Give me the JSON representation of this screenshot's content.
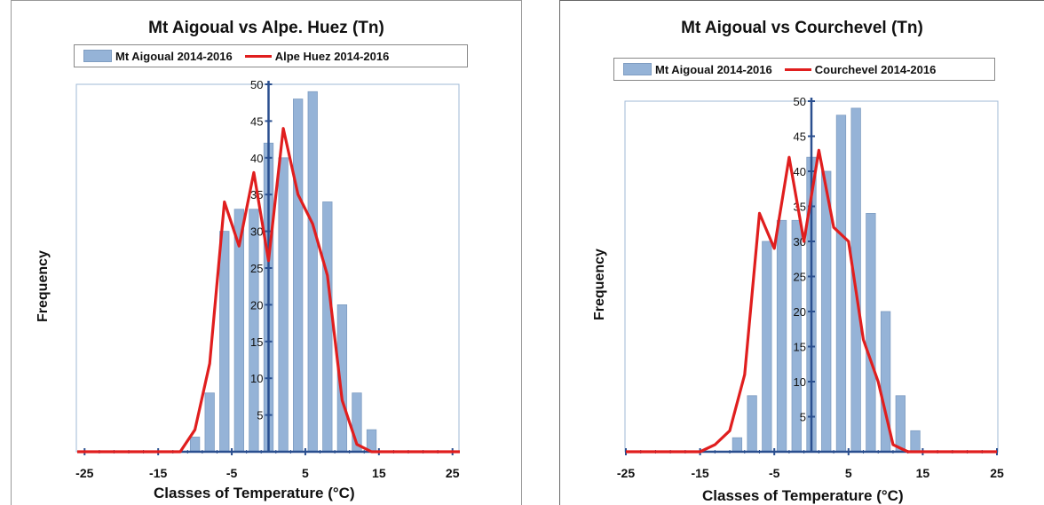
{
  "chart_data": [
    {
      "type": "bar",
      "title": "Mt Aigoual vs Alpe. Huez (Tn)",
      "xlabel": "Classes of Temperature (°C)",
      "ylabel": "Frequency",
      "xlim": [
        -26,
        26
      ],
      "ylim": [
        0,
        50
      ],
      "xticks": [
        -25,
        -15,
        -5,
        5,
        15,
        25
      ],
      "xtick_labels": [
        "-25",
        "-15",
        "-5",
        "5",
        "15",
        "25"
      ],
      "yticks": [
        5,
        10,
        15,
        20,
        25,
        30,
        35,
        40,
        45,
        50
      ],
      "legend_position": "top",
      "series": [
        {
          "name": "Mt Aigoual 2014-2016",
          "kind": "bar",
          "color": "#95b3d7",
          "x": [
            -10,
            -8,
            -6,
            -4,
            -2,
            0,
            2,
            4,
            6,
            8,
            10,
            12,
            14
          ],
          "values": [
            2,
            8,
            30,
            33,
            33,
            42,
            40,
            48,
            49,
            34,
            20,
            8,
            3
          ]
        },
        {
          "name": "Alpe Huez 2014-2016",
          "kind": "line",
          "color": "#e01e1e",
          "x": [
            -26,
            -24,
            -22,
            -20,
            -18,
            -16,
            -14,
            -12,
            -10,
            -8,
            -6,
            -4,
            -2,
            0,
            2,
            4,
            6,
            8,
            10,
            12,
            14,
            16,
            18,
            20,
            22,
            24,
            26
          ],
          "values": [
            0,
            0,
            0,
            0,
            0,
            0,
            0,
            0,
            3,
            12,
            34,
            28,
            38,
            26,
            44,
            35,
            31,
            24,
            7,
            1,
            0,
            0,
            0,
            0,
            0,
            0,
            0
          ]
        }
      ]
    },
    {
      "type": "bar",
      "title": "Mt Aigoual vs Courchevel (Tn)",
      "xlabel": "Classes of Temperature (°C)",
      "ylabel": "Frequency",
      "xlim": [
        -25,
        25
      ],
      "ylim": [
        0,
        50
      ],
      "xticks": [
        -25,
        -15,
        -5,
        5,
        15,
        25
      ],
      "xtick_labels": [
        "-25",
        "-15",
        "-5",
        "5",
        "15",
        "25"
      ],
      "yticks": [
        5,
        10,
        15,
        20,
        25,
        30,
        35,
        40,
        45,
        50
      ],
      "legend_position": "top",
      "series": [
        {
          "name": "Mt Aigoual 2014-2016",
          "kind": "bar",
          "color": "#95b3d7",
          "x": [
            -10,
            -8,
            -6,
            -4,
            -2,
            0,
            2,
            4,
            6,
            8,
            10,
            12,
            14
          ],
          "values": [
            2,
            8,
            30,
            33,
            33,
            42,
            40,
            48,
            49,
            34,
            20,
            8,
            3
          ]
        },
        {
          "name": "Courchevel 2014-2016",
          "kind": "line",
          "color": "#e01e1e",
          "x": [
            -25,
            -23,
            -21,
            -19,
            -17,
            -15,
            -13,
            -11,
            -9,
            -7,
            -5,
            -3,
            -1,
            1,
            3,
            5,
            7,
            9,
            11,
            13,
            15,
            17,
            19,
            21,
            23,
            25
          ],
          "values": [
            0,
            0,
            0,
            0,
            0,
            0,
            1,
            3,
            11,
            34,
            29,
            42,
            30,
            43,
            32,
            30,
            16,
            10,
            1,
            0,
            0,
            0,
            0,
            0,
            0,
            0
          ]
        }
      ]
    }
  ]
}
